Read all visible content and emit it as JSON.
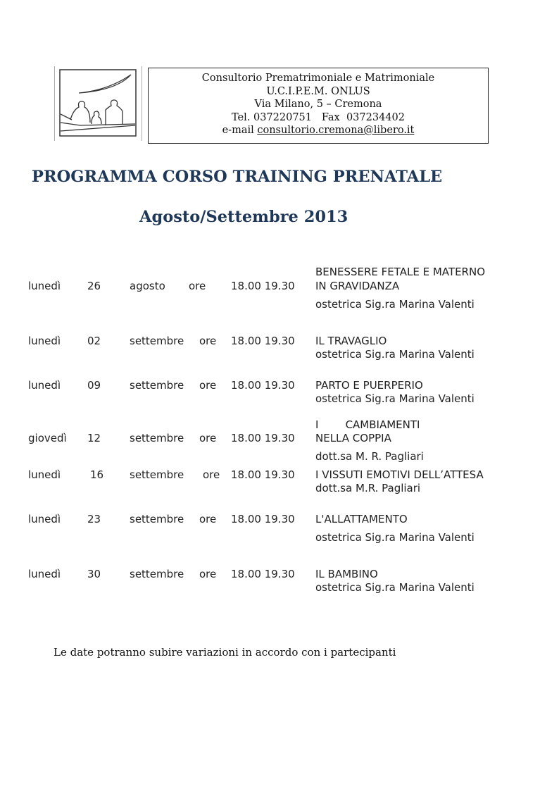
{
  "header": {
    "lines": [
      "Consultorio Prematrimoniale e Matrimoniale",
      "U.C.I.P.E.M. ONLUS",
      "Via Milano, 5 – Cremona",
      "Tel. 037220751   Fax  037234402"
    ],
    "email_prefix": "e-mail ",
    "email": "consultorio.cremona@libero.it"
  },
  "title": "PROGRAMMA CORSO TRAINING PRENATALE",
  "subtitle": "Agosto/Settembre 2013",
  "schedule": [
    {
      "day": "lunedì",
      "date": "26",
      "month": "agosto",
      "ore": "ore",
      "time": "18.00 19.30",
      "topic": [
        "BENESSERE FETALE E MATERNO",
        "IN GRAVIDANZA"
      ],
      "speaker": "ostetrica Sig.ra Marina Valenti"
    },
    {
      "day": "lunedì",
      "date": "02",
      "month": "settembre",
      "ore": "ore",
      "time": "18.00 19.30",
      "topic": [
        "IL TRAVAGLIO"
      ],
      "speaker": "ostetrica Sig.ra Marina Valenti"
    },
    {
      "day": "lunedì",
      "date": "09",
      "month": "settembre",
      "ore": "ore",
      "time": "18.00 19.30",
      "topic": [
        "PARTO E PUERPERIO"
      ],
      "speaker": "ostetrica Sig.ra Marina Valenti"
    },
    {
      "day": "giovedì",
      "date": "12",
      "month": "settembre",
      "ore": "ore",
      "time": "18.00 19.30",
      "topic": [
        "I        CAMBIAMENTI",
        "NELLA COPPIA"
      ],
      "speaker": "dott.sa M. R. Pagliari"
    },
    {
      "day": "lunedì",
      "date": "16",
      "month": "settembre",
      "ore": "ore",
      "time": "18.00 19.30",
      "topic": [
        "I VISSUTI EMOTIVI DELL’ATTESA"
      ],
      "speaker": "dott.sa M.R. Pagliari"
    },
    {
      "day": "lunedì",
      "date": "23",
      "month": "settembre",
      "ore": "ore",
      "time": "18.00 19.30",
      "topic": [
        "L'ALLATTAMENTO"
      ],
      "speaker": "ostetrica Sig.ra Marina Valenti"
    },
    {
      "day": "lunedì",
      "date": "30",
      "month": "settembre",
      "ore": "ore",
      "time": "18.00 19.30",
      "topic": [
        "IL BAMBINO"
      ],
      "speaker": "ostetrica Sig.ra Marina Valenti"
    }
  ],
  "note": "Le date potranno subire variazioni in accordo con i partecipanti"
}
